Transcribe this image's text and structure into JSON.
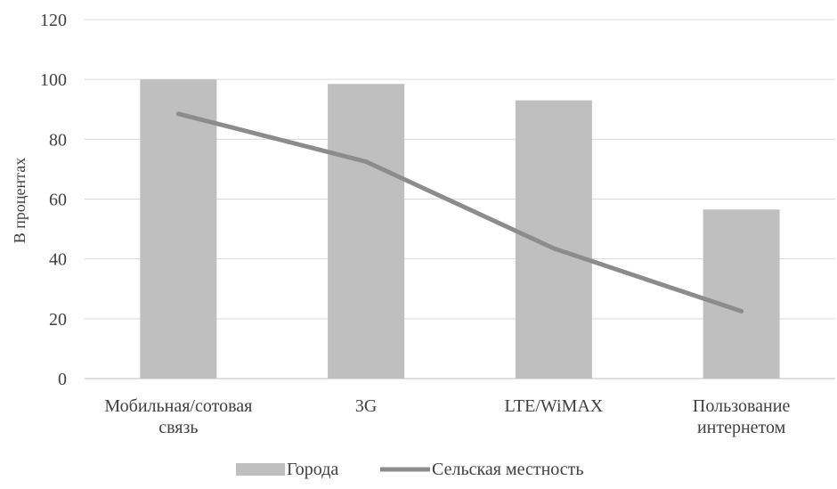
{
  "chart_data": {
    "type": "bar",
    "categories": [
      [
        "Мобильная/сотовая",
        "связь"
      ],
      [
        "3G"
      ],
      [
        "LTE/WiMAX"
      ],
      [
        "Пользование",
        "интернетом"
      ]
    ],
    "series": [
      {
        "name": "Города",
        "type": "bar",
        "color": "#bfbfbf",
        "values": [
          100,
          98.5,
          93,
          56.5
        ]
      },
      {
        "name": "Сельская местность",
        "type": "line",
        "color": "#8c8c8c",
        "values": [
          88.5,
          72.5,
          43.5,
          22.5
        ]
      }
    ],
    "ylabel": "В процентах",
    "xlabel": "",
    "title": "",
    "ylim": [
      0,
      120
    ],
    "yticks": [
      0,
      20,
      40,
      60,
      80,
      100,
      120
    ],
    "grid": true,
    "legend_position": "bottom"
  }
}
